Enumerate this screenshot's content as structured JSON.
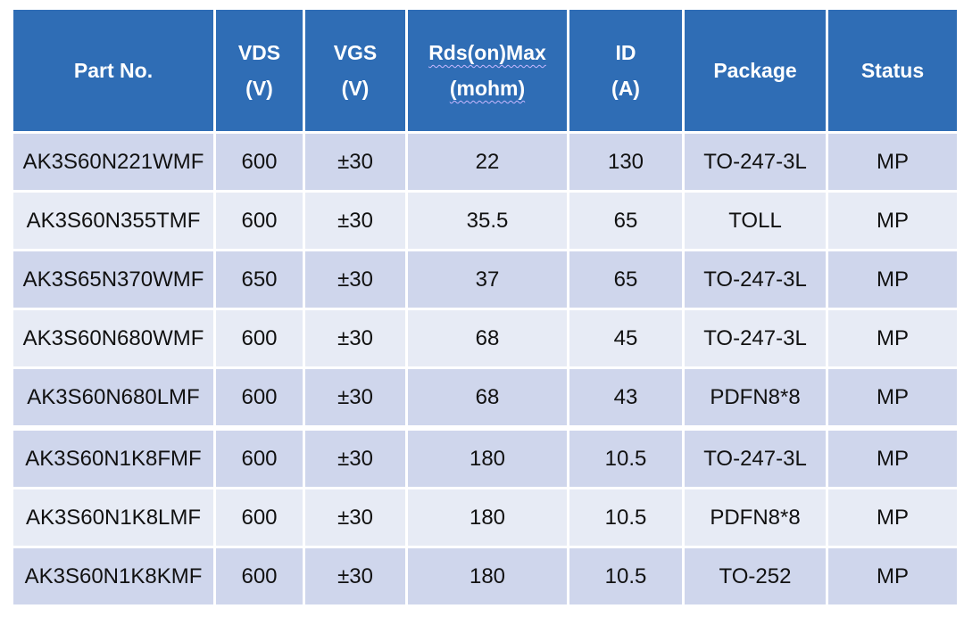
{
  "table": {
    "headers": [
      {
        "lines": [
          "Part No."
        ]
      },
      {
        "lines": [
          "VDS",
          "(V)"
        ]
      },
      {
        "lines": [
          "VGS",
          "(V)"
        ]
      },
      {
        "lines": [
          "Rds(on)Max",
          "(mohm)"
        ]
      },
      {
        "lines": [
          "ID",
          "(A)"
        ]
      },
      {
        "lines": [
          "Package"
        ]
      },
      {
        "lines": [
          "Status"
        ]
      }
    ],
    "rows": [
      [
        "AK3S60N221WMF",
        "600",
        "±30",
        "22",
        "130",
        "TO-247-3L",
        "MP"
      ],
      [
        "AK3S60N355TMF",
        "600",
        "±30",
        "35.5",
        "65",
        "TOLL",
        "MP"
      ],
      [
        "AK3S65N370WMF",
        "650",
        "±30",
        "37",
        "65",
        "TO-247-3L",
        "MP"
      ],
      [
        "AK3S60N680WMF",
        "600",
        "±30",
        "68",
        "45",
        "TO-247-3L",
        "MP"
      ],
      [
        "AK3S60N680LMF",
        "600",
        "±30",
        "68",
        "43",
        "PDFN8*8",
        "MP"
      ],
      [
        "AK3S60N1K8FMF",
        "600",
        "±30",
        "180",
        "10.5",
        "TO-247-3L",
        "MP"
      ],
      [
        "AK3S60N1K8LMF",
        "600",
        "±30",
        "180",
        "10.5",
        "PDFN8*8",
        "MP"
      ],
      [
        "AK3S60N1K8KMF",
        "600",
        "±30",
        "180",
        "10.5",
        "TO-252",
        "MP"
      ]
    ]
  },
  "colors": {
    "header_bg": "#2f6db5",
    "row_dark": "#cfd6ec",
    "row_light": "#e7ebf5"
  }
}
